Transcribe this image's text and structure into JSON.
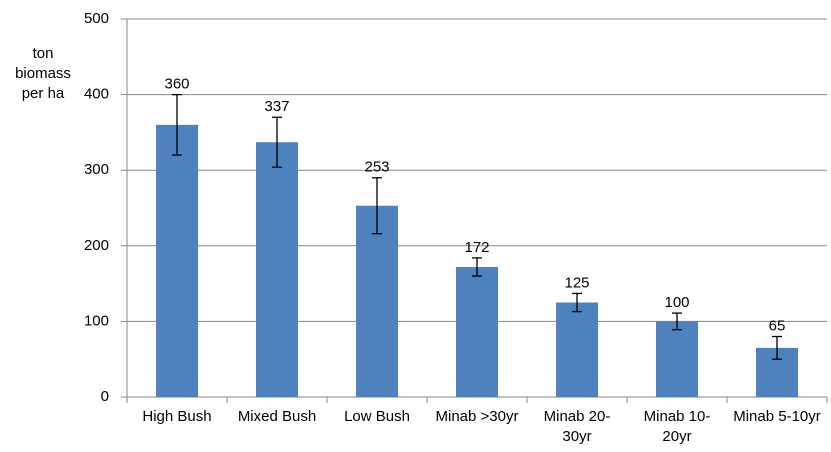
{
  "chart_data": {
    "type": "bar",
    "y_label": "ton biomass per ha",
    "categories": [
      "High Bush",
      "Mixed Bush",
      "Low Bush",
      "Minab >30yr",
      "Minab 20-30yr",
      "Minab 10-20yr",
      "Minab 5-10yr"
    ],
    "values": [
      360,
      337,
      253,
      172,
      125,
      100,
      65
    ],
    "errors": [
      40,
      33,
      37,
      12,
      12,
      11,
      15
    ],
    "color": "#4f81bd",
    "ylim": [
      0,
      500
    ],
    "yticks": [
      0,
      100,
      200,
      300,
      400,
      500
    ],
    "grid": true
  }
}
